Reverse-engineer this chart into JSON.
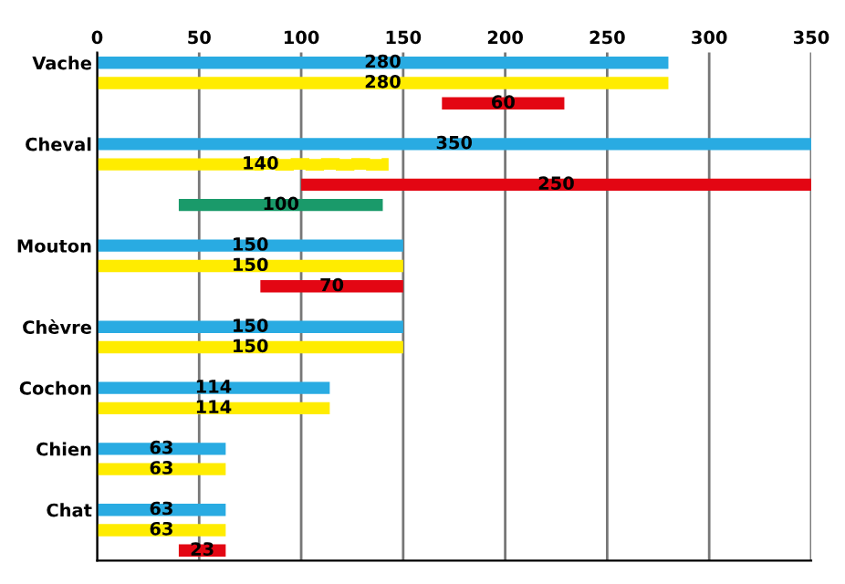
{
  "chart_data": {
    "type": "bar",
    "orientation": "horizontal",
    "categories": [
      "Vache",
      null,
      null,
      null,
      "Cheval",
      null,
      null,
      null,
      null,
      "Mouton",
      null,
      null,
      null,
      "Chèvre",
      null,
      null,
      "Cochon",
      null,
      null,
      "Chien",
      null,
      null,
      "Chat",
      null,
      null
    ],
    "series": [
      {
        "color": "#29abe2",
        "values": [
          280,
          null,
          null,
          null,
          350,
          null,
          null,
          null,
          null,
          150,
          null,
          null,
          null,
          150,
          null,
          null,
          114,
          null,
          null,
          63,
          null,
          null,
          63,
          null,
          null
        ]
      },
      {
        "color": "#ffec00",
        "values": [
          null,
          280,
          null,
          null,
          null,
          80,
          null,
          null,
          null,
          null,
          150,
          null,
          null,
          null,
          150,
          null,
          null,
          114,
          null,
          null,
          63,
          null,
          null,
          63,
          null
        ],
        "value_labels": [
          null,
          "280",
          null,
          null,
          null,
          null,
          null,
          null,
          null,
          null,
          "150",
          null,
          null,
          null,
          "150",
          null,
          null,
          "114",
          null,
          null,
          "63",
          null,
          null,
          "63",
          null
        ]
      },
      {
        "color": "#ffec00",
        "line_style": "dashed",
        "values": [
          null,
          null,
          null,
          null,
          null,
          60,
          null,
          null,
          null,
          null,
          null,
          null,
          null,
          null,
          null,
          null,
          null,
          null,
          null,
          null,
          null,
          null,
          null,
          null,
          null
        ],
        "base": [
          null,
          null,
          null,
          null,
          null,
          80,
          null,
          null,
          null,
          null,
          null,
          null,
          null,
          null,
          null,
          null,
          null,
          null,
          null,
          null,
          null,
          null,
          null,
          null,
          null
        ],
        "value_labels": [
          null,
          null,
          null,
          null,
          null,
          null,
          null,
          null,
          null,
          null,
          null,
          null,
          null,
          null,
          null,
          null,
          null,
          null,
          null,
          null,
          null,
          null,
          null,
          null,
          null
        ]
      },
      {
        "color": "#e30613",
        "values": [
          null,
          null,
          60,
          null,
          null,
          null,
          250,
          null,
          null,
          null,
          null,
          70,
          null,
          null,
          null,
          null,
          null,
          null,
          null,
          null,
          null,
          null,
          null,
          null,
          23
        ],
        "base": [
          null,
          null,
          169,
          null,
          null,
          null,
          100,
          null,
          null,
          null,
          null,
          80,
          null,
          null,
          null,
          null,
          null,
          null,
          null,
          null,
          null,
          null,
          null,
          null,
          40
        ]
      },
      {
        "color": "#1a9a6a",
        "values": [
          null,
          null,
          null,
          null,
          null,
          null,
          null,
          100,
          null,
          null,
          null,
          null,
          null,
          null,
          null,
          null,
          null,
          null,
          null,
          null,
          null,
          null,
          null,
          null,
          null
        ],
        "base": [
          null,
          null,
          null,
          null,
          null,
          null,
          null,
          40,
          null,
          null,
          null,
          null,
          null,
          null,
          null,
          null,
          null,
          null,
          null,
          null,
          null,
          null,
          null,
          null,
          null
        ]
      }
    ],
    "annotations": [
      "140"
    ],
    "legend": false,
    "data_labels": true,
    "xlim": [
      0,
      350
    ],
    "xticks": [
      0,
      50,
      100,
      150,
      200,
      250,
      300,
      350
    ],
    "grid": "x"
  }
}
